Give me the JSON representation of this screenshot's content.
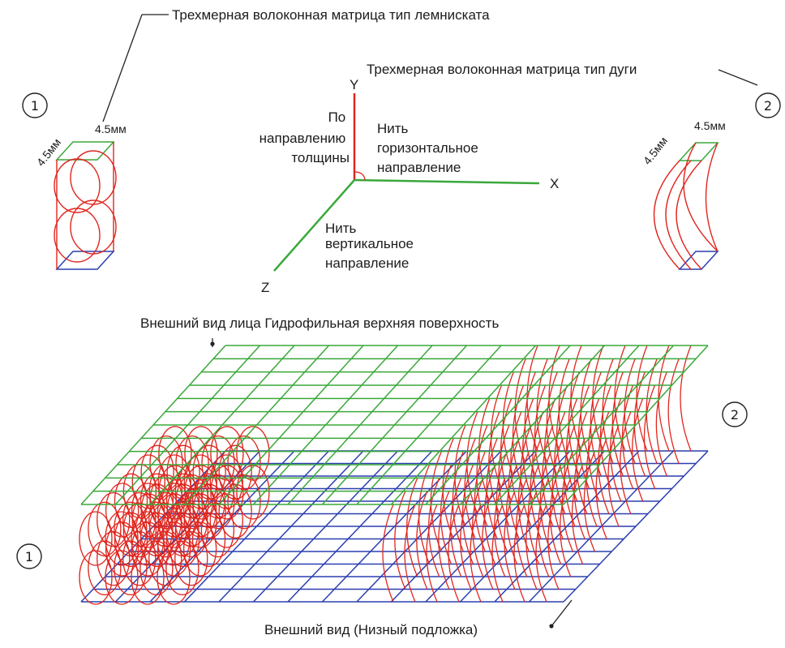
{
  "labels": {
    "lemniscate_title": "Трехмерная волоконная матрица тип лемниската",
    "arc_title": "Трехмерная волоконная матрица тип дуги",
    "mm_left_side": "4.5мм",
    "mm_left_top": "4.5мм",
    "mm_right_side": "4.5мм",
    "mm_right_top": "4.5мм",
    "axis_y": "Y",
    "axis_x": "X",
    "axis_z": "Z",
    "thickness_dir": [
      "По",
      "направлению",
      "толщины"
    ],
    "horizontal_thread": [
      "Нить",
      "горизонтальное",
      "направление"
    ],
    "vertical_thread": [
      "Нить",
      "вертикальное",
      "направление"
    ],
    "top_surface": "Внешний вид лица Гидрофильная верхняя поверхность",
    "bottom_surface": "Внешний вид (Низный подложка)",
    "num_1": "1",
    "num_2": "2"
  },
  "colors": {
    "green": "#3aa83a",
    "blue": "#2b3fb0",
    "red": "#e0261e",
    "text": "#1c1c1c"
  }
}
